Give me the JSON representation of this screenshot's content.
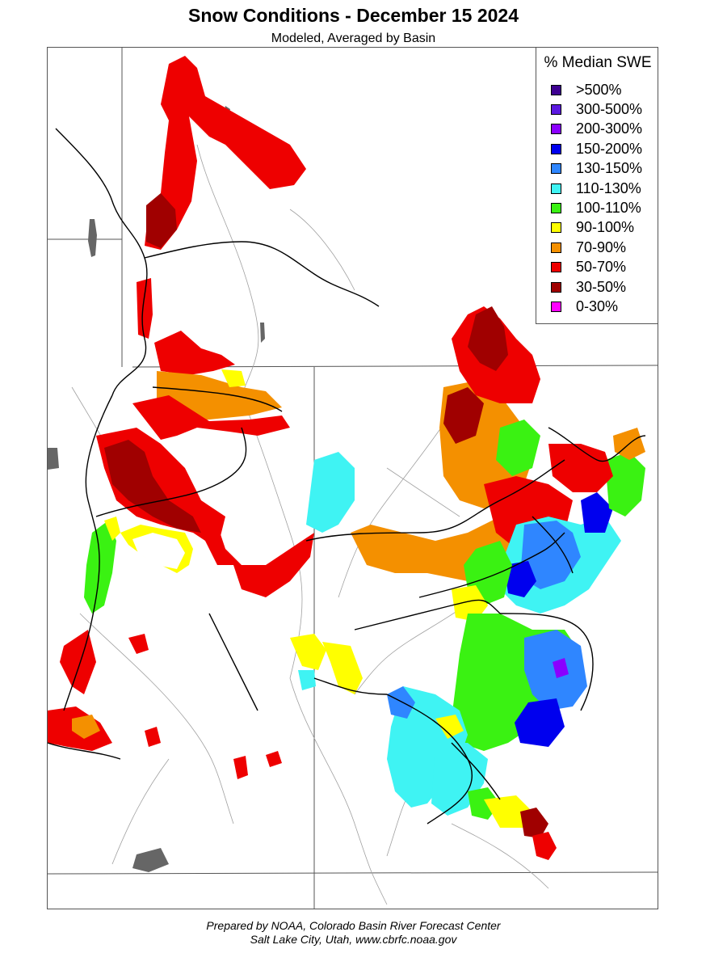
{
  "title": "Snow Conditions - December 15 2024",
  "subtitle": "Modeled, Averaged by Basin",
  "legend": {
    "title": "% Median SWE",
    "items": [
      {
        "label": ">500%",
        "color": "#3d0091"
      },
      {
        "label": "300-500%",
        "color": "#5b19e0"
      },
      {
        "label": "200-300%",
        "color": "#8a00ff"
      },
      {
        "label": "150-200%",
        "color": "#0000ee"
      },
      {
        "label": "130-150%",
        "color": "#2f86ff"
      },
      {
        "label": "110-130%",
        "color": "#3ff3f3"
      },
      {
        "label": "100-110%",
        "color": "#3af212"
      },
      {
        "label": "90-100%",
        "color": "#ffff00"
      },
      {
        "label": "70-90%",
        "color": "#f49000"
      },
      {
        "label": "50-70%",
        "color": "#ee0000"
      },
      {
        "label": "30-50%",
        "color": "#a00000"
      },
      {
        "label": "0-30%",
        "color": "#ff00ff"
      }
    ]
  },
  "credit": {
    "line1": "Prepared by NOAA, Colorado Basin River Forecast Center",
    "line2": "Salt Lake City, Utah, www.cbrfc.noaa.gov"
  },
  "colors": {
    "basin_border": "#000000",
    "state_border": "#555555",
    "river": "#9a9a9a",
    "lake": "#666666"
  }
}
